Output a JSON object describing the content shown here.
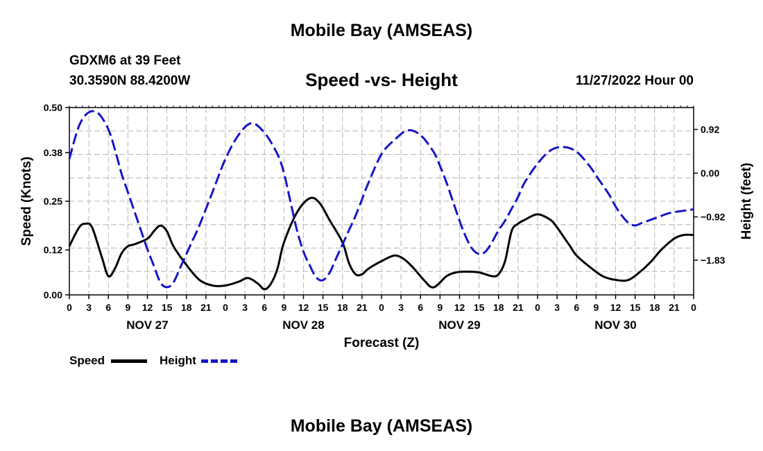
{
  "header": {
    "title": "Mobile Bay (AMSEAS)",
    "station": "GDXM6 at 39 Feet",
    "coords": "30.3590N  88.4200W",
    "subtitle": "Speed -vs- Height",
    "datetime": "11/27/2022 Hour 00"
  },
  "footer": {
    "title": "Mobile Bay (AMSEAS)"
  },
  "legend": {
    "speed_label": "Speed",
    "height_label": "Height"
  },
  "colors": {
    "speed": "#000000",
    "height": "#1515c8",
    "grid": "#b4b4b4"
  },
  "chart_data": {
    "type": "line",
    "xlabel": "Forecast (Z)",
    "ylabel": "Speed (Knots)",
    "y2label": "Height (feet)",
    "xlim": [
      0,
      96
    ],
    "ylim": [
      0,
      0.5
    ],
    "y2lim": [
      -2.56,
      1.38
    ],
    "x_tick_labels": [
      "0",
      "3",
      "6",
      "9",
      "12",
      "15",
      "18",
      "21",
      "0",
      "3",
      "6",
      "9",
      "12",
      "15",
      "18",
      "21",
      "0",
      "3",
      "6",
      "9",
      "12",
      "15",
      "18",
      "21",
      "0",
      "3",
      "6",
      "9",
      "12",
      "15",
      "18",
      "21",
      "0"
    ],
    "day_labels": [
      {
        "label": "NOV 27",
        "hour": 12
      },
      {
        "label": "NOV 28",
        "hour": 36
      },
      {
        "label": "NOV 29",
        "hour": 60
      },
      {
        "label": "NOV 30",
        "hour": 84
      }
    ],
    "y_ticks": [
      0.0,
      0.12,
      0.25,
      0.38,
      0.5
    ],
    "y_tick_labels": [
      "0.00",
      "0.12",
      "0.25",
      "0.38",
      "0.50"
    ],
    "y2_ticks": [
      -1.83,
      -0.92,
      0.0,
      0.92
    ],
    "y2_tick_labels": [
      "−1.83",
      "−0.92",
      "0.00",
      "0.92"
    ],
    "series": [
      {
        "name": "Speed",
        "axis": "left",
        "style": "solid",
        "x": [
          0,
          1.5,
          2.5,
          3.5,
          5,
          6,
          7,
          8,
          9,
          10,
          12,
          13,
          14,
          15,
          16,
          18,
          20,
          22,
          24,
          26,
          27.5,
          29,
          30,
          31,
          32,
          33,
          35,
          37,
          38.5,
          40,
          42,
          43,
          44,
          45,
          46,
          48,
          50,
          51.5,
          53,
          54.5,
          56,
          58,
          59.5,
          61,
          63,
          65,
          66,
          67,
          68,
          69,
          70,
          72,
          74,
          75,
          76,
          77,
          78,
          80,
          82,
          84,
          86,
          88,
          89.5,
          91,
          93,
          94.5,
          96
        ],
        "y": [
          0.13,
          0.18,
          0.19,
          0.18,
          0.1,
          0.05,
          0.07,
          0.11,
          0.13,
          0.135,
          0.15,
          0.17,
          0.185,
          0.17,
          0.13,
          0.08,
          0.04,
          0.025,
          0.025,
          0.035,
          0.045,
          0.03,
          0.015,
          0.03,
          0.07,
          0.14,
          0.22,
          0.258,
          0.245,
          0.2,
          0.14,
          0.085,
          0.055,
          0.055,
          0.07,
          0.09,
          0.105,
          0.095,
          0.07,
          0.04,
          0.02,
          0.05,
          0.06,
          0.062,
          0.06,
          0.05,
          0.055,
          0.09,
          0.17,
          0.19,
          0.2,
          0.215,
          0.2,
          0.18,
          0.155,
          0.13,
          0.105,
          0.075,
          0.05,
          0.04,
          0.04,
          0.065,
          0.09,
          0.12,
          0.15,
          0.16,
          0.16
        ]
      },
      {
        "name": "Height",
        "axis": "right",
        "style": "dashed",
        "x": [
          0,
          1.5,
          3,
          4.5,
          6,
          7,
          8,
          9,
          10,
          11,
          12,
          13,
          14,
          15,
          16,
          17,
          18,
          19,
          20,
          22,
          24,
          26,
          28,
          30,
          32,
          33,
          34,
          35,
          36,
          37,
          38,
          39,
          40,
          41,
          42,
          43,
          44,
          45,
          46,
          48,
          50,
          52,
          54,
          56,
          57,
          58,
          59,
          60,
          61,
          62,
          63,
          64,
          65,
          66,
          67,
          68,
          69,
          70,
          72,
          74,
          76,
          78,
          80,
          81,
          82,
          83,
          84,
          85,
          86,
          87,
          88,
          89,
          90,
          91,
          92,
          93,
          94,
          95,
          96
        ],
        "y": [
          0.3,
          1.0,
          1.28,
          1.25,
          0.92,
          0.5,
          0.0,
          -0.4,
          -0.8,
          -1.2,
          -1.6,
          -1.95,
          -2.3,
          -2.4,
          -2.3,
          -2.0,
          -1.7,
          -1.4,
          -1.1,
          -0.4,
          0.3,
          0.8,
          1.05,
          0.85,
          0.4,
          0.0,
          -0.6,
          -1.2,
          -1.65,
          -1.95,
          -2.2,
          -2.25,
          -2.1,
          -1.8,
          -1.5,
          -1.2,
          -0.9,
          -0.55,
          -0.2,
          0.4,
          0.7,
          0.9,
          0.8,
          0.45,
          0.15,
          -0.2,
          -0.6,
          -1.0,
          -1.35,
          -1.6,
          -1.7,
          -1.65,
          -1.45,
          -1.2,
          -1.0,
          -0.75,
          -0.5,
          -0.2,
          0.2,
          0.48,
          0.55,
          0.45,
          0.15,
          -0.05,
          -0.25,
          -0.45,
          -0.7,
          -0.9,
          -1.05,
          -1.1,
          -1.05,
          -1.0,
          -0.95,
          -0.9,
          -0.85,
          -0.82,
          -0.8,
          -0.78,
          -0.76
        ]
      }
    ]
  }
}
